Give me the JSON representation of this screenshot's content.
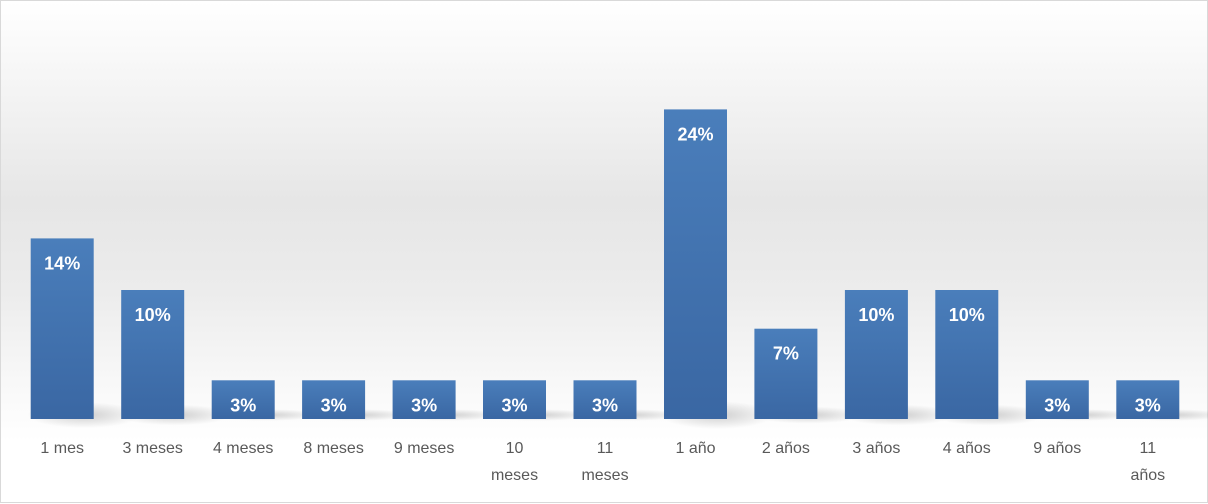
{
  "chart_data": {
    "type": "bar",
    "categories": [
      "1 mes",
      "3 meses",
      "4 meses",
      "8 meses",
      "9 meses",
      "10 meses",
      "11 meses",
      "1 año",
      "2 años",
      "3 años",
      "4 años",
      "9 años",
      "11 años"
    ],
    "values": [
      14,
      10,
      3,
      3,
      3,
      3,
      3,
      24,
      7,
      10,
      10,
      3,
      3
    ],
    "data_labels": [
      "14%",
      "10%",
      "3%",
      "3%",
      "3%",
      "3%",
      "3%",
      "24%",
      "7%",
      "10%",
      "10%",
      "3%",
      "3%"
    ],
    "value_unit": "%",
    "ylim": [
      0,
      30
    ],
    "grid": false,
    "legend": "none",
    "bar_color": "#4a7ebb",
    "bar_color_dark": "#3a67a3",
    "label_color": "#ffffff",
    "axis_text_color": "#595959"
  }
}
